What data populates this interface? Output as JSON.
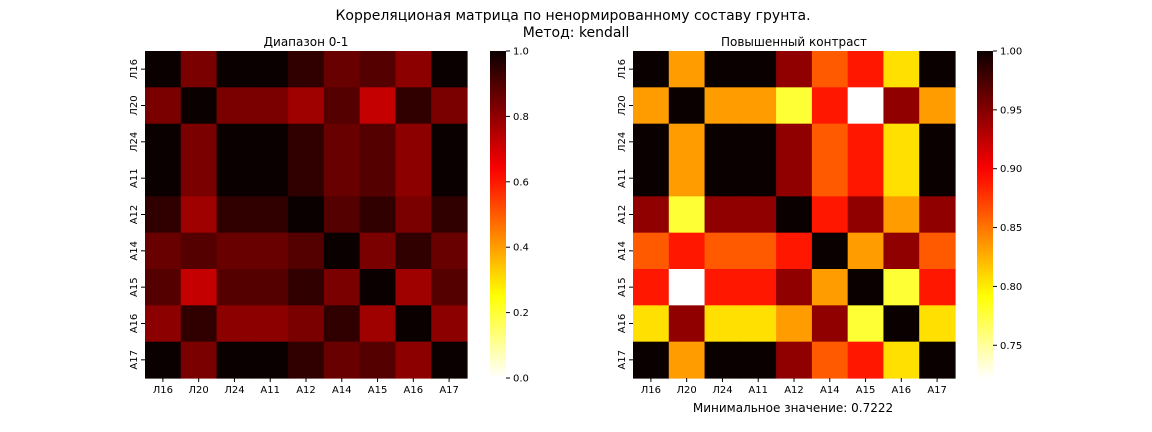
{
  "figure": {
    "title_line1": "Корреляционая матрица по ненормированному составу грунта.",
    "title_line2": "Метод: kendall",
    "footnote": "Минимальное значение: 0.7222"
  },
  "chart_data": [
    {
      "type": "heatmap",
      "title": "Диапазон 0-1",
      "colormap": "hot_r",
      "vmin": 0,
      "vmax": 1,
      "colorbar_ticks": [
        "0.0",
        "0.2",
        "0.4",
        "0.6",
        "0.8",
        "1.0"
      ],
      "x_labels": [
        "Л16",
        "Л20",
        "Л24",
        "А11",
        "А12",
        "А14",
        "А15",
        "А16",
        "А17"
      ],
      "y_labels": [
        "Л16",
        "Л20",
        "Л24",
        "А11",
        "А12",
        "А14",
        "А15",
        "А16",
        "А17"
      ],
      "matrix": [
        [
          1.0,
          0.8333,
          1.0,
          1.0,
          0.9444,
          0.8611,
          0.8889,
          0.8056,
          1.0
        ],
        [
          0.8333,
          1.0,
          0.8333,
          0.8333,
          0.7778,
          0.8889,
          0.7222,
          0.9444,
          0.8333
        ],
        [
          1.0,
          0.8333,
          1.0,
          1.0,
          0.9444,
          0.8611,
          0.8889,
          0.8056,
          1.0
        ],
        [
          1.0,
          0.8333,
          1.0,
          1.0,
          0.9444,
          0.8611,
          0.8889,
          0.8056,
          1.0
        ],
        [
          0.9444,
          0.7778,
          0.9444,
          0.9444,
          1.0,
          0.8889,
          0.9444,
          0.8333,
          0.9444
        ],
        [
          0.8611,
          0.8889,
          0.8611,
          0.8611,
          0.8889,
          1.0,
          0.8333,
          0.9444,
          0.8611
        ],
        [
          0.8889,
          0.7222,
          0.8889,
          0.8889,
          0.9444,
          0.8333,
          1.0,
          0.7778,
          0.8889
        ],
        [
          0.8056,
          0.9444,
          0.8056,
          0.8056,
          0.8333,
          0.9444,
          0.7778,
          1.0,
          0.8056
        ],
        [
          1.0,
          0.8333,
          1.0,
          1.0,
          0.9444,
          0.8611,
          0.8889,
          0.8056,
          1.0
        ]
      ]
    },
    {
      "type": "heatmap",
      "title": "Повышенный контраст",
      "colormap": "hot_r",
      "vmin": 0.7222,
      "vmax": 1,
      "colorbar_ticks": [
        "0.75",
        "0.80",
        "0.85",
        "0.90",
        "0.95",
        "1.00"
      ],
      "x_labels": [
        "Л16",
        "Л20",
        "Л24",
        "А11",
        "А12",
        "А14",
        "А15",
        "А16",
        "А17"
      ],
      "y_labels": [
        "Л16",
        "Л20",
        "Л24",
        "А11",
        "А12",
        "А14",
        "А15",
        "А16",
        "А17"
      ],
      "matrix": [
        [
          1.0,
          0.8333,
          1.0,
          1.0,
          0.9444,
          0.8611,
          0.8889,
          0.8056,
          1.0
        ],
        [
          0.8333,
          1.0,
          0.8333,
          0.8333,
          0.7778,
          0.8889,
          0.7222,
          0.9444,
          0.8333
        ],
        [
          1.0,
          0.8333,
          1.0,
          1.0,
          0.9444,
          0.8611,
          0.8889,
          0.8056,
          1.0
        ],
        [
          1.0,
          0.8333,
          1.0,
          1.0,
          0.9444,
          0.8611,
          0.8889,
          0.8056,
          1.0
        ],
        [
          0.9444,
          0.7778,
          0.9444,
          0.9444,
          1.0,
          0.8889,
          0.9444,
          0.8333,
          0.9444
        ],
        [
          0.8611,
          0.8889,
          0.8611,
          0.8611,
          0.8889,
          1.0,
          0.8333,
          0.9444,
          0.8611
        ],
        [
          0.8889,
          0.7222,
          0.8889,
          0.8889,
          0.9444,
          0.8333,
          1.0,
          0.7778,
          0.8889
        ],
        [
          0.8056,
          0.9444,
          0.8056,
          0.8056,
          0.8333,
          0.9444,
          0.7778,
          1.0,
          0.8056
        ],
        [
          1.0,
          0.8333,
          1.0,
          1.0,
          0.9444,
          0.8611,
          0.8889,
          0.8056,
          1.0
        ]
      ]
    }
  ]
}
